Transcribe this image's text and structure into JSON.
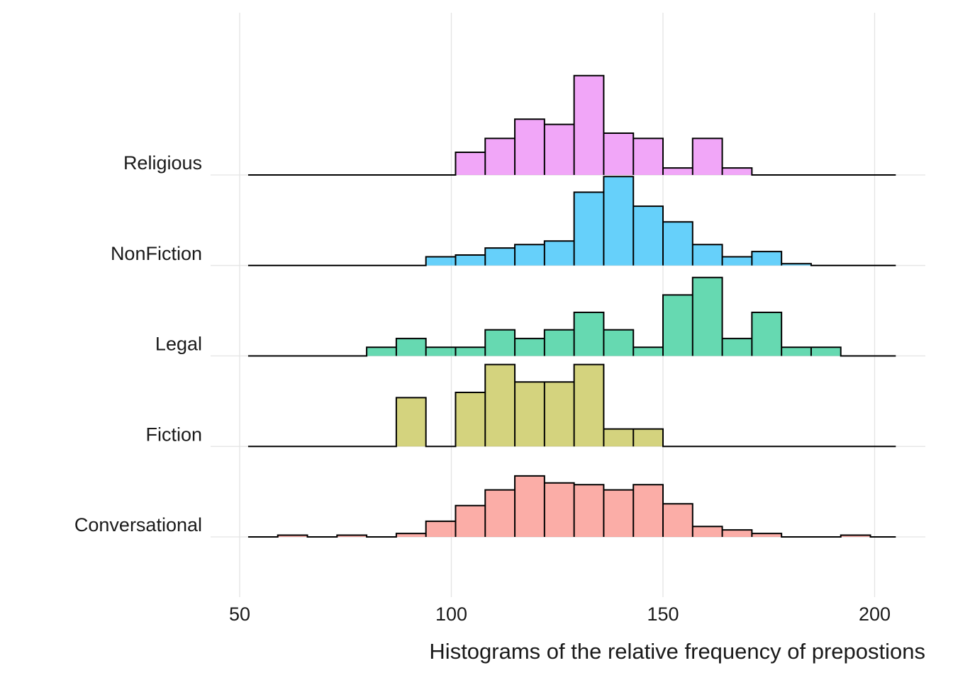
{
  "chart_data": {
    "type": "histogram-ridgeline",
    "xlabel": "Histograms of the relative frequency of prepostions",
    "ylabel": "",
    "xlim": [
      50,
      212
    ],
    "x_ticks": [
      50,
      100,
      150,
      200
    ],
    "x_tick_labels": [
      "50",
      "100",
      "150",
      "200"
    ],
    "baseline_range": [
      52,
      205
    ],
    "bin_width": 7,
    "grid": true,
    "legend": "none",
    "series": [
      {
        "name": "Conversational",
        "color": "#F8766D",
        "bins": [
          [
            59,
            66,
            0.1
          ],
          [
            73,
            80,
            0.1
          ],
          [
            87,
            94,
            0.2
          ],
          [
            94,
            101,
            0.9
          ],
          [
            101,
            108,
            1.8
          ],
          [
            108,
            115,
            2.7
          ],
          [
            115,
            122,
            3.5
          ],
          [
            122,
            129,
            3.1
          ],
          [
            129,
            136,
            3.0
          ],
          [
            136,
            143,
            2.7
          ],
          [
            143,
            150,
            3.0
          ],
          [
            150,
            157,
            1.9
          ],
          [
            157,
            164,
            0.6
          ],
          [
            164,
            171,
            0.4
          ],
          [
            171,
            178,
            0.2
          ],
          [
            192,
            199,
            0.1
          ]
        ]
      },
      {
        "name": "Fiction",
        "color": "#B7B628",
        "bins": [
          [
            87,
            94,
            2.8
          ],
          [
            101,
            108,
            3.1
          ],
          [
            108,
            115,
            4.7
          ],
          [
            115,
            122,
            3.7
          ],
          [
            122,
            129,
            3.7
          ],
          [
            129,
            136,
            4.7
          ],
          [
            136,
            143,
            1.0
          ],
          [
            143,
            150,
            1.0
          ]
        ]
      },
      {
        "name": "Legal",
        "color": "#00BF7D",
        "bins": [
          [
            80,
            87,
            0.5
          ],
          [
            87,
            94,
            1.0
          ],
          [
            94,
            101,
            0.5
          ],
          [
            101,
            108,
            0.5
          ],
          [
            108,
            115,
            1.5
          ],
          [
            115,
            122,
            1.0
          ],
          [
            122,
            129,
            1.5
          ],
          [
            129,
            136,
            2.5
          ],
          [
            136,
            143,
            1.5
          ],
          [
            143,
            150,
            0.5
          ],
          [
            150,
            157,
            3.5
          ],
          [
            157,
            164,
            4.5
          ],
          [
            164,
            171,
            1.0
          ],
          [
            171,
            178,
            2.5
          ],
          [
            178,
            185,
            0.5
          ],
          [
            185,
            192,
            0.5
          ]
        ]
      },
      {
        "name": "NonFiction",
        "color": "#00B0F6",
        "bins": [
          [
            94,
            101,
            0.5
          ],
          [
            101,
            108,
            0.6
          ],
          [
            108,
            115,
            1.0
          ],
          [
            115,
            122,
            1.2
          ],
          [
            122,
            129,
            1.4
          ],
          [
            129,
            136,
            4.2
          ],
          [
            136,
            143,
            5.1
          ],
          [
            143,
            150,
            3.4
          ],
          [
            150,
            157,
            2.5
          ],
          [
            157,
            164,
            1.2
          ],
          [
            164,
            171,
            0.5
          ],
          [
            171,
            178,
            0.8
          ],
          [
            178,
            185,
            0.1
          ]
        ]
      },
      {
        "name": "Religious",
        "color": "#E76BF3",
        "bins": [
          [
            101,
            108,
            1.3
          ],
          [
            108,
            115,
            2.1
          ],
          [
            115,
            122,
            3.2
          ],
          [
            122,
            129,
            2.9
          ],
          [
            129,
            136,
            5.7
          ],
          [
            136,
            143,
            2.4
          ],
          [
            143,
            150,
            2.1
          ],
          [
            150,
            157,
            0.4
          ],
          [
            157,
            164,
            2.1
          ],
          [
            164,
            171,
            0.4
          ]
        ]
      }
    ]
  }
}
